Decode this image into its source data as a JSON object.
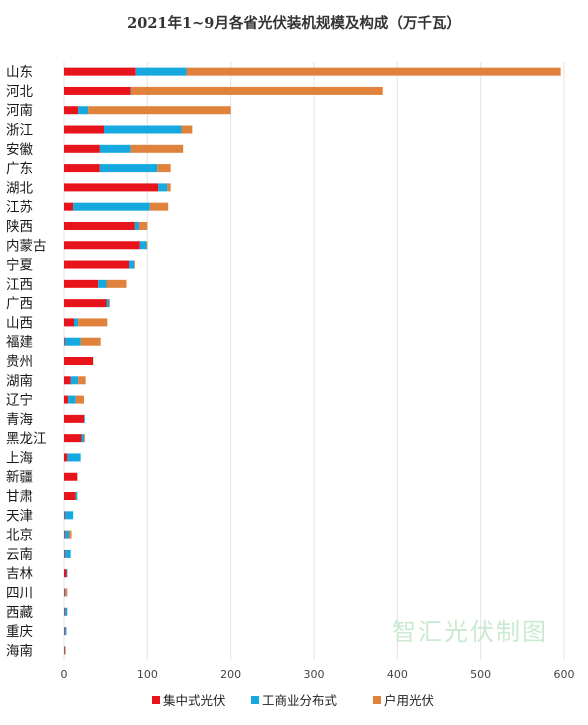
{
  "chart_data": {
    "type": "bar",
    "orientation": "horizontal",
    "stacked": true,
    "title": "2021年1~9月各省光伏装机规模及构成（万千瓦）",
    "xlabel": "",
    "ylabel": "",
    "xlim": [
      0,
      600
    ],
    "x_ticks": [
      0,
      100,
      200,
      300,
      400,
      500,
      600
    ],
    "grid": true,
    "legend_position": "bottom",
    "categories": [
      "山东",
      "河北",
      "河南",
      "浙江",
      "安徽",
      "广东",
      "湖北",
      "江苏",
      "陕西",
      "内蒙古",
      "宁夏",
      "江西",
      "广西",
      "山西",
      "福建",
      "贵州",
      "湖南",
      "辽宁",
      "青海",
      "黑龙江",
      "上海",
      "新疆",
      "甘肃",
      "天津",
      "北京",
      "云南",
      "吉林",
      "四川",
      "西藏",
      "重庆",
      "海南"
    ],
    "series": [
      {
        "name": "集中式光伏",
        "color": "#e8141c",
        "values": [
          86,
          80,
          17,
          48,
          43,
          43,
          113,
          11,
          85,
          91,
          78,
          41,
          51,
          12,
          1,
          35,
          8,
          5,
          24,
          21,
          4,
          16,
          14,
          1,
          1,
          1,
          3,
          1,
          1,
          1,
          0.5
        ]
      },
      {
        "name": "工商业分布式",
        "color": "#15a9e0",
        "values": [
          61,
          0.5,
          12,
          93,
          37,
          69,
          11,
          92,
          5,
          8,
          6,
          10,
          3,
          5,
          19,
          0,
          9,
          9,
          1,
          3,
          16,
          0,
          2,
          10,
          5,
          7,
          1,
          1,
          3,
          2,
          0.5
        ]
      },
      {
        "name": "户用光伏",
        "color": "#e0823c",
        "values": [
          449,
          302,
          171,
          13,
          63,
          16,
          4,
          22,
          10,
          1,
          1,
          24,
          1,
          35,
          24,
          0,
          9,
          10,
          0,
          1,
          0,
          0,
          0,
          0,
          3,
          0,
          0,
          2,
          0,
          0,
          1
        ]
      }
    ]
  },
  "watermark": "智汇光伏制图"
}
